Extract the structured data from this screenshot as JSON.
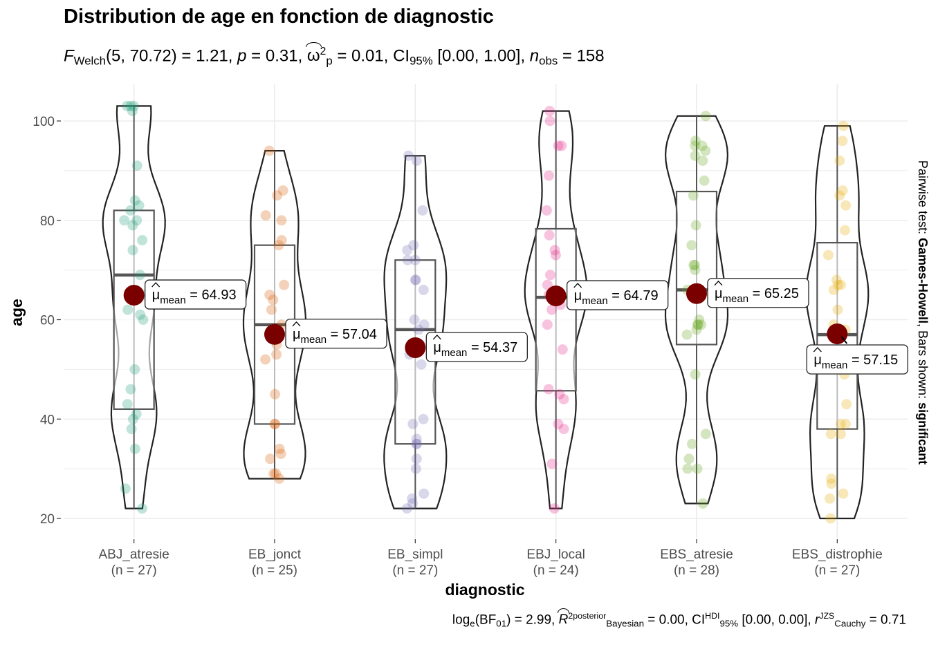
{
  "chart_data": {
    "type": "violin-box-scatter",
    "title": "Distribution de age en fonction de diagnostic",
    "subtitle": {
      "stat_name": "F",
      "stat_sub": "Welch",
      "df": "(5, 70.72)",
      "stat_value": " = 1.21, ",
      "p_label": "p",
      "p_value": " = 0.31, ",
      "es_symbol": "ω",
      "es_sup": "2",
      "es_sub": "p",
      "es_value": " = 0.01, CI",
      "ci_sub": "95%",
      "ci_value": " [0.00, 1.00], ",
      "n_label": "n",
      "n_sub": "obs",
      "n_value": " = 158"
    },
    "caption": {
      "bf_prefix": "log",
      "bf_e": "e",
      "bf_paren": "(BF",
      "bf_sub": "01",
      "bf_value": ") = 2.99, ",
      "r2": "R",
      "r2_sup": "2",
      "r2_sup2": "posterior",
      "r2_sub": "Bayesian",
      "r2_value": " = 0.00, CI",
      "ci_sup": "HDI",
      "ci_sub": "95%",
      "ci_value": " [0.00, 0.00], ",
      "r_label": "r",
      "r_sup": "JZS",
      "r_sub": "Cauchy",
      "r_value": " = 0.71"
    },
    "xlabel": "diagnostic",
    "ylabel": "age",
    "ylim": [
      18,
      106
    ],
    "yticks": [
      20,
      40,
      60,
      80,
      100
    ],
    "right_label": {
      "prefix": "Pairwise test: ",
      "test": "Games-Howell",
      "middle": ", Bars shown: ",
      "shown": "significant"
    },
    "mean_label_prefix": "μ",
    "mean_label_sub": "mean",
    "groups": [
      {
        "name": "ABJ_atresie",
        "n_label": "(n = 27)",
        "color": "#1B9E77",
        "min": 22,
        "max": 103,
        "q1": 42,
        "median": 69,
        "q3": 82,
        "mean": 64.93,
        "mean_label": "= 64.93",
        "points": [
          22,
          26,
          34,
          38,
          40,
          41,
          43,
          46,
          50,
          60,
          61,
          62,
          65,
          69,
          74,
          76,
          79,
          80,
          82,
          83,
          84,
          91,
          102,
          103,
          103,
          103,
          80
        ]
      },
      {
        "name": "EB_jonct",
        "n_label": "(n = 25)",
        "color": "#D95F02",
        "min": 28,
        "max": 94,
        "q1": 39,
        "median": 59,
        "q3": 75,
        "mean": 57.04,
        "mean_label": "= 57.04",
        "points": [
          28,
          29,
          29,
          32,
          33,
          34,
          39,
          39,
          45,
          52,
          53,
          55,
          57,
          59,
          62,
          64,
          65,
          67,
          75,
          76,
          80,
          81,
          85,
          86,
          94
        ]
      },
      {
        "name": "EB_simpl",
        "n_label": "(n = 27)",
        "color": "#7570B3",
        "min": 22,
        "max": 93,
        "q1": 35,
        "median": 58,
        "q3": 72,
        "mean": 54.37,
        "mean_label": "= 54.37",
        "points": [
          22,
          23,
          24,
          25,
          30,
          32,
          35,
          35,
          36,
          39,
          40,
          51,
          53,
          55,
          58,
          59,
          60,
          66,
          68,
          68,
          72,
          72,
          74,
          75,
          82,
          92,
          93
        ]
      },
      {
        "name": "EBJ_local",
        "n_label": "(n = 24)",
        "color": "#E7298A",
        "min": 22,
        "max": 102,
        "q1": 45.7,
        "median": 64.5,
        "q3": 78.3,
        "mean": 64.79,
        "mean_label": "= 64.79",
        "points": [
          22,
          31,
          38,
          39,
          44,
          45,
          46,
          54,
          59,
          62,
          63,
          64,
          65,
          67,
          69,
          73,
          74,
          77,
          82,
          89,
          95,
          95,
          100,
          102
        ]
      },
      {
        "name": "EBS_atresie",
        "n_label": "(n = 28)",
        "color": "#66A61E",
        "min": 23,
        "max": 101,
        "q1": 55,
        "median": 66,
        "q3": 85.8,
        "mean": 65.25,
        "mean_label": "= 65.25",
        "points": [
          23,
          30,
          30,
          32,
          35,
          37,
          49,
          57,
          58,
          59,
          59,
          60,
          66,
          70,
          71,
          75,
          79,
          85,
          88,
          92,
          93,
          94,
          95,
          95,
          96,
          101,
          71,
          59
        ]
      },
      {
        "name": "EBS_distrophie",
        "n_label": "(n = 27)",
        "color": "#E6AB02",
        "min": 20,
        "max": 99,
        "q1": 38,
        "median": 57,
        "q3": 75.5,
        "mean": 57.15,
        "mean_label": "= 57.15",
        "points": [
          20,
          24,
          25,
          27,
          28,
          37,
          39,
          39,
          43,
          49,
          52,
          58,
          62,
          66,
          67,
          67,
          68,
          73,
          78,
          83,
          85,
          86,
          92,
          96,
          99,
          59,
          37
        ]
      }
    ]
  }
}
